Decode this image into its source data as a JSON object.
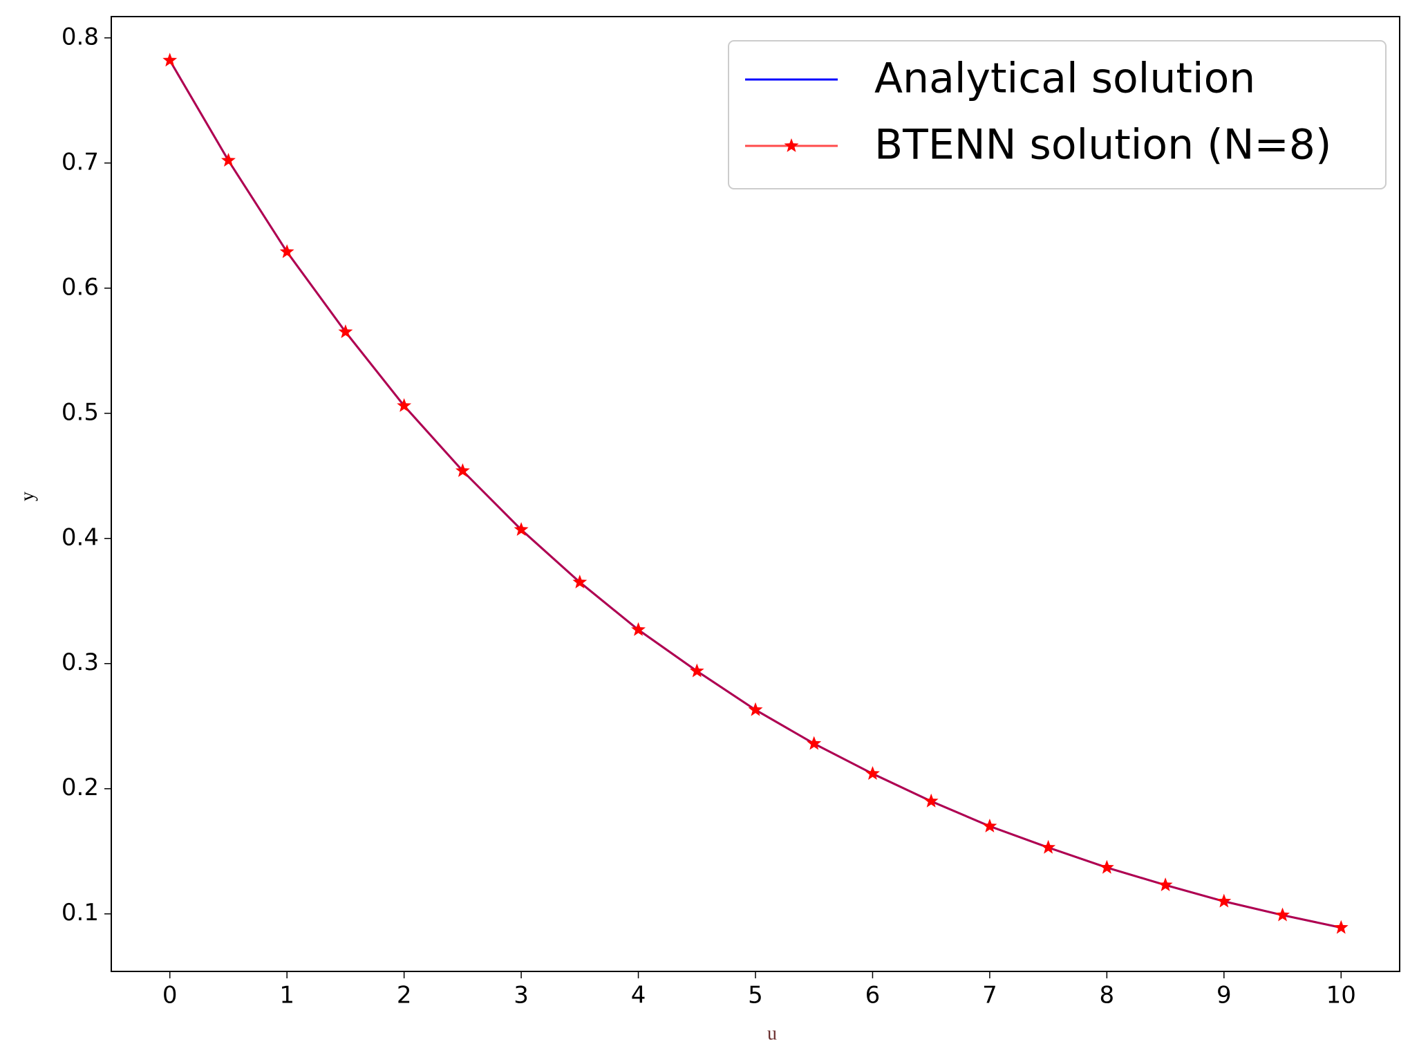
{
  "chart_data": {
    "type": "line",
    "x_label": "u",
    "y_label": "y",
    "x": [
      0,
      0.5,
      1,
      1.5,
      2,
      2.5,
      3,
      3.5,
      4,
      4.5,
      5,
      5.5,
      6,
      6.5,
      7,
      7.5,
      8,
      8.5,
      9,
      9.5,
      10
    ],
    "series": [
      {
        "name": "Analytical solution",
        "color": "#0000ff",
        "marker": "none",
        "values": [
          0.782,
          0.702,
          0.629,
          0.565,
          0.506,
          0.454,
          0.407,
          0.365,
          0.327,
          0.294,
          0.263,
          0.236,
          0.212,
          0.19,
          0.17,
          0.153,
          0.137,
          0.123,
          0.11,
          0.099,
          0.089
        ]
      },
      {
        "name": "BTENN solution (N=8)",
        "color": "#ff0000",
        "marker": "star",
        "values": [
          0.782,
          0.702,
          0.629,
          0.565,
          0.506,
          0.454,
          0.407,
          0.365,
          0.327,
          0.294,
          0.263,
          0.236,
          0.212,
          0.19,
          0.17,
          0.153,
          0.137,
          0.123,
          0.11,
          0.099,
          0.089
        ]
      }
    ],
    "xlim": [
      -0.5,
      10.5
    ],
    "ylim": [
      0.054,
      0.817
    ],
    "xticks": [
      0,
      1,
      2,
      3,
      4,
      5,
      6,
      7,
      8,
      9,
      10
    ],
    "yticks": [
      0.1,
      0.2,
      0.3,
      0.4,
      0.5,
      0.6,
      0.7,
      0.8
    ],
    "grid": false,
    "legend": "upper right"
  }
}
